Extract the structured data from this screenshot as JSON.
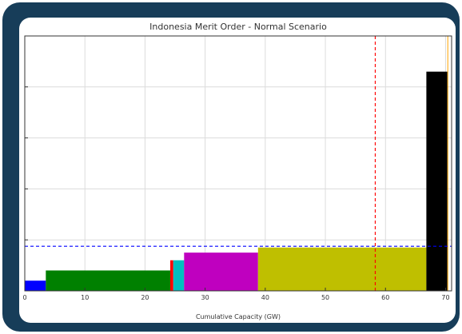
{
  "chart_data": {
    "type": "bar",
    "subtype": "merit-order-stepped",
    "title": "Indonesia Merit Order - Normal Scenario",
    "xlabel": "Cumulative Capacity (GW)",
    "ylabel": "",
    "xlim": [
      0,
      71
    ],
    "ylim": [
      0,
      100
    ],
    "x_ticks": [
      0,
      10,
      20,
      30,
      40,
      50,
      60,
      70
    ],
    "y_ticks": [
      0,
      20,
      40,
      60,
      80,
      100
    ],
    "y_tick_labels_visible": false,
    "grid": true,
    "legend": "none",
    "blocks": [
      {
        "x_start": 0,
        "x_end": 3.5,
        "value": 4,
        "color": "#0000ff"
      },
      {
        "x_start": 3.5,
        "x_end": 24.2,
        "value": 8,
        "color": "#008000"
      },
      {
        "x_start": 24.2,
        "x_end": 24.7,
        "value": 12,
        "color": "#ff0000"
      },
      {
        "x_start": 24.7,
        "x_end": 26.5,
        "value": 12,
        "color": "#00bfbf"
      },
      {
        "x_start": 26.5,
        "x_end": 38.8,
        "value": 15,
        "color": "#bf00bf"
      },
      {
        "x_start": 38.8,
        "x_end": 66.8,
        "value": 17,
        "color": "#bfbf00"
      },
      {
        "x_start": 66.8,
        "x_end": 70.3,
        "value": 86,
        "color": "#000000"
      },
      {
        "x_start": 70.3,
        "x_end": 70.4,
        "value": 117,
        "color": "#ffa500"
      }
    ],
    "reference_lines": [
      {
        "axis": "x",
        "value": 58.3,
        "color": "#ff0000",
        "style": "dashed"
      },
      {
        "axis": "y",
        "value": 17.5,
        "color": "#0000ff",
        "style": "dashed"
      }
    ]
  }
}
